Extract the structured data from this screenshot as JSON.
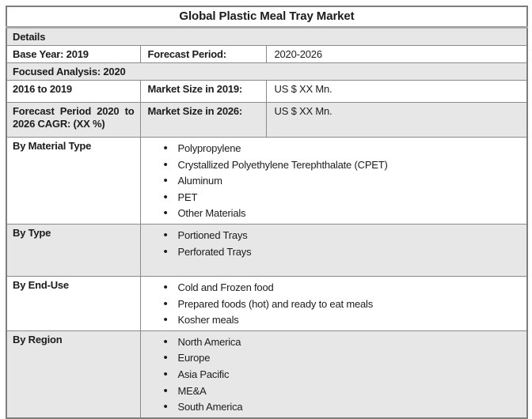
{
  "table": {
    "title": "Global Plastic Meal Tray Market",
    "details_header": "Details",
    "focused_analysis": "Focused Analysis: 2020",
    "base_year_row": {
      "label": "Base Year: 2019",
      "key": "Forecast Period:",
      "value": "2020-2026"
    },
    "market_size_rows": [
      {
        "label": "2016 to 2019",
        "key": "Market Size in 2019:",
        "value": "US $ XX Mn."
      },
      {
        "label": "Forecast Period 2020 to 2026 CAGR: (XX %)",
        "key": "Market Size in 2026:",
        "value": "US $ XX Mn."
      }
    ],
    "segments": [
      {
        "label": "By Material Type",
        "items": [
          "Polypropylene",
          "Crystallized Polyethylene Terephthalate (CPET)",
          "Aluminum",
          "PET",
          "Other Materials"
        ]
      },
      {
        "label": "By Type",
        "items": [
          "Portioned Trays",
          "Perforated Trays"
        ]
      },
      {
        "label": "By End-Use",
        "items": [
          "Cold and Frozen food",
          "Prepared foods (hot) and ready to eat meals",
          "Kosher meals"
        ]
      },
      {
        "label": "By Region",
        "items": [
          "North America",
          "Europe",
          "Asia Pacific",
          "ME&A",
          "South America"
        ]
      }
    ],
    "colors": {
      "shaded_row": "#e7e7e7",
      "border": "#8a8a8a",
      "title_divider": "#a6a6a6",
      "text": "#1c1c1c"
    }
  }
}
